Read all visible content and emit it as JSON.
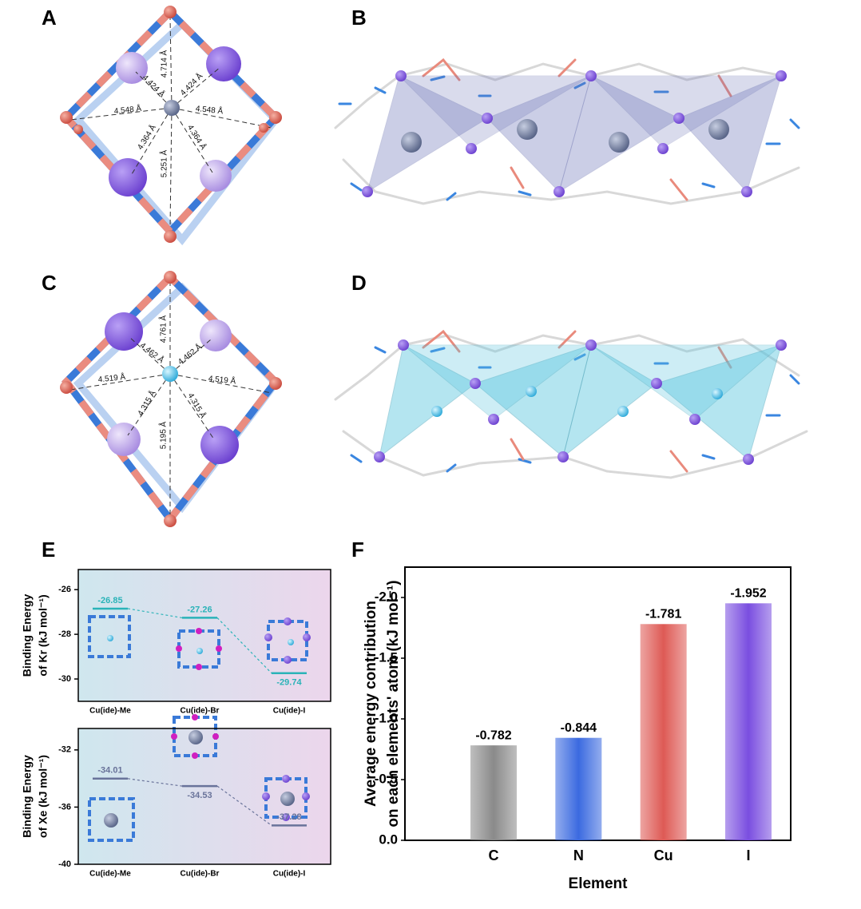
{
  "panel_labels": [
    "A",
    "B",
    "C",
    "D",
    "E",
    "F"
  ],
  "structure_A": {
    "distances": [
      "4.714 Å",
      "4.424 Å",
      "4.424 Å",
      "4.548 Å",
      "4.548 Å",
      "4.364 Å",
      "4.364 Å",
      "5.251 Å"
    ]
  },
  "structure_C": {
    "distances": [
      "4.761 Å",
      "4.462 Å",
      "4.462 Å",
      "4.519 Å",
      "4.519 Å",
      "4.315 Å",
      "4.315 Å",
      "5.195 Å"
    ]
  },
  "chart_data": [
    {
      "type": "level",
      "y_label": [
        "Binding Energy",
        "of Kr (kJ mol⁻¹)"
      ],
      "categories": [
        "Cu(ide)-Me",
        "Cu(ide)-Br",
        "Cu(ide)-I"
      ],
      "values": [
        -26.85,
        -27.26,
        -29.74
      ],
      "color": "#2ab3b8",
      "ylim": [
        -31,
        -25.1
      ],
      "yticks": [
        -26,
        -28,
        -30
      ]
    },
    {
      "type": "level",
      "y_label": [
        "Binding Energy",
        "of Xe (kJ mol⁻¹)"
      ],
      "categories": [
        "Cu(ide)-Me",
        "Cu(ide)-Br",
        "Cu(ide)-I"
      ],
      "values": [
        -34.01,
        -34.53,
        -37.28
      ],
      "color": "#69739a",
      "ylim": [
        -40,
        -30.5
      ],
      "yticks": [
        -32,
        -36,
        -40
      ]
    },
    {
      "type": "bar",
      "x_label": "Element",
      "y_label": [
        "Average energy contribution",
        "on each elements' atom (kJ mol⁻¹)"
      ],
      "categories": [
        "C",
        "N",
        "Cu",
        "I"
      ],
      "values": [
        -0.782,
        -0.844,
        -1.781,
        -1.952
      ],
      "colors": [
        "#8a8a8a",
        "#3b6ae0",
        "#de5a55",
        "#7a4ee0"
      ],
      "ylim": [
        0,
        -2.25
      ],
      "yticks": [
        {
          "value": 0,
          "label": "0.0"
        },
        -0.5,
        {
          "value": -1,
          "label": "-1.0"
        },
        -1.5,
        {
          "value": -2,
          "label": "-2.0"
        }
      ]
    }
  ]
}
